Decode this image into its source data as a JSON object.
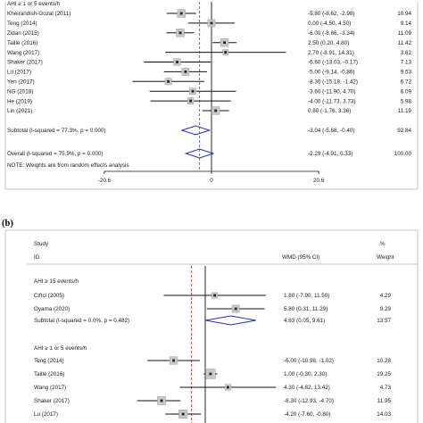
{
  "panel_b_label": "(b)",
  "chart_data": [
    {
      "type": "forest",
      "title": "",
      "subgroup_header": "AHI ≥ 1 or 5 events/h",
      "xticks": [
        "-20.6",
        "0",
        "20.6"
      ],
      "xlim": [
        -26,
        26
      ],
      "studies": [
        {
          "label": "Kheirandish-Gozal (2011)",
          "estimate": -5.8,
          "lower": -8.62,
          "upper": -2.98,
          "ci_text": "-5.80 (-8.62, -2.98)",
          "weight": "10.94"
        },
        {
          "label": "Teng (2014)",
          "estimate": 0.0,
          "lower": -4.5,
          "upper": 4.5,
          "ci_text": "0.00 (-4.50, 4.50)",
          "weight": "9.14"
        },
        {
          "label": "Zidan (2015)",
          "estimate": -6.0,
          "lower": -8.66,
          "upper": -3.34,
          "ci_text": "-6.00 (-8.66, -3.34)",
          "weight": "11.09"
        },
        {
          "label": "Taillé (2016)",
          "estimate": 2.5,
          "lower": 0.2,
          "upper": 4.8,
          "ci_text": "2.50 (0.20, 4.80)",
          "weight": "11.42"
        },
        {
          "label": "Wang (2017)",
          "estimate": 2.7,
          "lower": -8.91,
          "upper": 14.31,
          "ci_text": "2.70 (-8.91, 14.31)",
          "weight": "3.62"
        },
        {
          "label": "Shaker (2017)",
          "estimate": -6.6,
          "lower": -13.03,
          "upper": -0.17,
          "ci_text": "-6.60 (-13.03, -0.17)",
          "weight": "7.13"
        },
        {
          "label": "Lu (2017)",
          "estimate": -5.0,
          "lower": -9.14,
          "upper": -0.86,
          "ci_text": "-5.00 (-9.14, -0.86)",
          "weight": "9.53"
        },
        {
          "label": "Yen (2017)",
          "estimate": -8.3,
          "lower": -15.18,
          "upper": -1.42,
          "ci_text": "-8.30 (-15.18, -1.42)",
          "weight": "6.72"
        },
        {
          "label": "NG (2018)",
          "estimate": -3.6,
          "lower": -11.9,
          "upper": 4.7,
          "ci_text": "-3.60 (-11.90, 4.70)",
          "weight": "6.09"
        },
        {
          "label": "He (2019)",
          "estimate": -4.0,
          "lower": -11.73,
          "upper": 3.73,
          "ci_text": "-4.00 (-11.73, 3.73)",
          "weight": "5.98"
        },
        {
          "label": "Lin (2021)",
          "estimate": 0.8,
          "lower": -1.76,
          "upper": 3.36,
          "ci_text": "0.80 (-1.76, 3.36)",
          "weight": "11.19"
        }
      ],
      "subtotal": {
        "label": "Subtotal  (I-squared = 77.3%, p = 0.000)",
        "estimate": -3.04,
        "lower": -5.68,
        "upper": -0.4,
        "ci_text": "-3.04 (-5.68, -0.40)",
        "weight": "92.84"
      },
      "overall": {
        "label": "Overall  (I-squared = 75.9%, p = 0.000)",
        "estimate": -2.29,
        "lower": -4.91,
        "upper": 0.33,
        "ci_text": "-2.29 (-4.91, 0.33)",
        "weight": "100.00"
      },
      "note": "NOTE: Weights are from random effects analysis"
    },
    {
      "type": "forest",
      "title": "",
      "header": {
        "study": "Study",
        "id": "ID",
        "effect": "WMD (95% CI)",
        "pct": "%",
        "weight": "Weight"
      },
      "xlim": [
        -26,
        26
      ],
      "groups": [
        {
          "header": "AHI ≥ 15 events/h",
          "studies": [
            {
              "label": "Ciftci (2005)",
              "estimate": 1.8,
              "lower": -7.9,
              "upper": 11.5,
              "ci_text": "1.80 (-7.90, 11.50)",
              "weight": "4.29"
            },
            {
              "label": "Oyama (2020)",
              "estimate": 5.8,
              "lower": 0.31,
              "upper": 11.29,
              "ci_text": "5.80 (0.31, 11.29)",
              "weight": "9.29"
            }
          ],
          "subtotal": {
            "label": "Subtotal  (I-squared = 0.0%, p = 0.482)",
            "estimate": 4.83,
            "lower": 0.05,
            "upper": 9.61,
            "ci_text": "4.83 (0.05, 9.61)",
            "weight": "13.57"
          }
        },
        {
          "header": "AHI ≥ 1 or 5 events/h",
          "studies": [
            {
              "label": "Teng (2014)",
              "estimate": -6.0,
              "lower": -10.98,
              "upper": -1.02,
              "ci_text": "-6.00 (-10.98, -1.02)",
              "weight": "10.28"
            },
            {
              "label": "Taillé (2016)",
              "estimate": 1.0,
              "lower": -0.3,
              "upper": 2.3,
              "ci_text": "1.00 (-0.30, 2.30)",
              "weight": "19.25"
            },
            {
              "label": "Wang (2017)",
              "estimate": 4.3,
              "lower": -4.82,
              "upper": 13.42,
              "ci_text": "4.30 (-4.82, 13.42)",
              "weight": "4.73"
            },
            {
              "label": "Shaker (2017)",
              "estimate": -8.3,
              "lower": -12.93,
              "upper": -4.7,
              "ci_text": "-8.30 (-12.93, -4.70)",
              "weight": "11.95"
            },
            {
              "label": "Lu (2017)",
              "estimate": -4.2,
              "lower": -7.6,
              "upper": -0.8,
              "ci_text": "-4.20 (-7.60, -0.80)",
              "weight": "14.03"
            }
          ]
        }
      ]
    }
  ]
}
